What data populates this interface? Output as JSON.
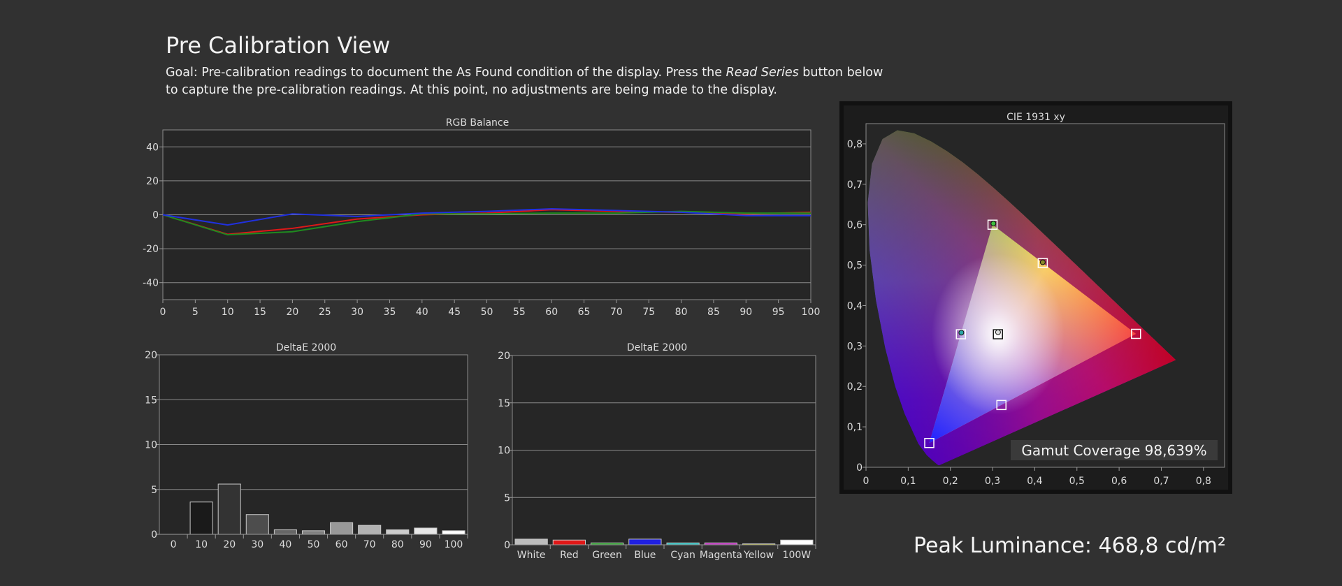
{
  "page": {
    "title": "Pre Calibration View",
    "goal_prefix": "Goal: Pre-calibration readings to document the As Found condition of the display. Press the ",
    "goal_emphasis": "Read Series",
    "goal_suffix": " button below to capture the pre-calibration readings. At this point, no adjustments are being made to the display.",
    "peak_luminance": "Peak Luminance: 468,8 cd/m²"
  },
  "chart_data": [
    {
      "id": "rgb",
      "type": "line",
      "title": "RGB Balance",
      "xlabel": "",
      "ylabel": "",
      "x": [
        0,
        10,
        20,
        30,
        40,
        50,
        60,
        70,
        80,
        90,
        100
      ],
      "xticks": [
        "0",
        "5",
        "10",
        "15",
        "20",
        "25",
        "30",
        "35",
        "40",
        "45",
        "50",
        "55",
        "60",
        "65",
        "70",
        "75",
        "80",
        "85",
        "90",
        "95",
        "100"
      ],
      "ylim": [
        -50,
        50
      ],
      "yticks": [
        "40",
        "20",
        "0",
        "-20",
        "-40"
      ],
      "ytick_values": [
        40,
        20,
        0,
        -20,
        -40
      ],
      "grid": true,
      "series": [
        {
          "color": "#e01818",
          "values": [
            0,
            -11.5,
            -8,
            -2.5,
            0,
            1,
            3,
            2,
            1.5,
            0.5,
            1.5
          ]
        },
        {
          "color": "#1f8a1f",
          "values": [
            0,
            -11.8,
            -10,
            -4,
            0.5,
            0.5,
            1,
            1,
            2,
            1,
            1
          ]
        },
        {
          "color": "#2030e0",
          "values": [
            0,
            -6,
            0.5,
            -1,
            1,
            2,
            3.5,
            2.5,
            1.5,
            -0.5,
            -0.5
          ]
        }
      ]
    },
    {
      "id": "de_gray",
      "type": "bar",
      "title": "DeltaE 2000",
      "categories": [
        "0",
        "10",
        "20",
        "30",
        "40",
        "50",
        "60",
        "70",
        "80",
        "90",
        "100"
      ],
      "values": [
        0,
        3.6,
        5.6,
        2.2,
        0.5,
        0.4,
        1.3,
        1.0,
        0.5,
        0.7,
        0.4
      ],
      "colors": [
        "#000000",
        "#1a1a1a",
        "#333333",
        "#4d4d4d",
        "#666666",
        "#808080",
        "#999999",
        "#b3b3b3",
        "#cccccc",
        "#e6e6e6",
        "#ffffff"
      ],
      "ylim": [
        0,
        20
      ],
      "yticks": [
        "20",
        "15",
        "10",
        "5",
        "0"
      ],
      "ytick_values": [
        20,
        15,
        10,
        5,
        0
      ],
      "grid": true
    },
    {
      "id": "de_color",
      "type": "bar",
      "title": "DeltaE 2000",
      "categories": [
        "White",
        "Red",
        "Green",
        "Blue",
        "Cyan",
        "Magenta",
        "Yellow",
        "100W"
      ],
      "values": [
        0.6,
        0.5,
        0.2,
        0.6,
        0.2,
        0.2,
        0.1,
        0.5
      ],
      "colors": [
        "#bdbdbd",
        "#e01818",
        "#1f9a1f",
        "#2020e0",
        "#1fbfbf",
        "#c01fc0",
        "#c8c81f",
        "#ffffff"
      ],
      "ylim": [
        0,
        20
      ],
      "yticks": [
        "20",
        "15",
        "10",
        "5",
        "0"
      ],
      "ytick_values": [
        20,
        15,
        10,
        5,
        0
      ],
      "grid": true
    },
    {
      "id": "cie",
      "type": "scatter",
      "title": "CIE 1931 xy",
      "xlim": [
        0,
        0.85
      ],
      "ylim": [
        0,
        0.85
      ],
      "xticks": [
        "0",
        "0,1",
        "0,2",
        "0,3",
        "0,4",
        "0,5",
        "0,6",
        "0,7",
        "0,8"
      ],
      "xtick_values": [
        0,
        0.1,
        0.2,
        0.3,
        0.4,
        0.5,
        0.6,
        0.7,
        0.8
      ],
      "yticks": [
        "0,8",
        "0,7",
        "0,6",
        "0,5",
        "0,4",
        "0,3",
        "0,2",
        "0,1",
        "0"
      ],
      "ytick_values": [
        0.8,
        0.7,
        0.6,
        0.5,
        0.4,
        0.3,
        0.2,
        0.1,
        0
      ],
      "targets": [
        {
          "name": "red",
          "x": 0.64,
          "y": 0.33
        },
        {
          "name": "green",
          "x": 0.3,
          "y": 0.6
        },
        {
          "name": "blue",
          "x": 0.15,
          "y": 0.06
        },
        {
          "name": "yellow",
          "x": 0.419,
          "y": 0.505
        },
        {
          "name": "cyan",
          "x": 0.225,
          "y": 0.329
        },
        {
          "name": "magenta",
          "x": 0.321,
          "y": 0.154
        },
        {
          "name": "white",
          "x": 0.3127,
          "y": 0.329
        }
      ],
      "measured": [
        {
          "name": "green",
          "x": 0.302,
          "y": 0.603,
          "color": "#3fbf3f"
        },
        {
          "name": "yellow",
          "x": 0.419,
          "y": 0.507,
          "color": "#8a8a2a"
        },
        {
          "name": "cyan",
          "x": 0.226,
          "y": 0.333,
          "color": "#2aa6a6"
        },
        {
          "name": "white",
          "x": 0.313,
          "y": 0.334,
          "color": "#dddddd"
        }
      ],
      "annotation": "Gamut Coverage 98,639%"
    }
  ]
}
